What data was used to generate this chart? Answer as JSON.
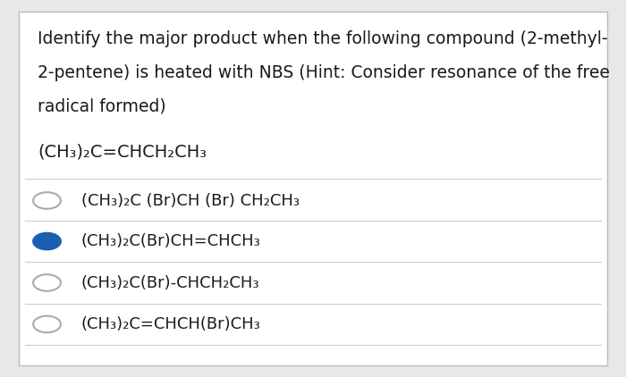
{
  "background_color": "#e8e8e8",
  "panel_color": "#ffffff",
  "question_text_line1": "Identify the major product when the following compound (2-methyl-",
  "question_text_line2": "2-pentene) is heated with NBS (Hint: Consider resonance of the free",
  "question_text_line3": "radical formed)",
  "compound": "(CH₃)₂C=CHCH₂CH₃",
  "options": [
    {
      "label": "(CH₃)₂C (Br)CH (Br) CH₂CH₃",
      "selected": false
    },
    {
      "label": "(CH₃)₂C(Br)CH=CHCH₃",
      "selected": true
    },
    {
      "label": "(CH₃)₂C(Br)-CHCH₂CH₃",
      "selected": false
    },
    {
      "label": "(CH₃)₂C=CHCH(Br)CH₃",
      "selected": false
    }
  ],
  "font_size_question": 13.5,
  "font_size_compound": 14,
  "font_size_options": 13,
  "selected_color": "#1a5fb4",
  "unselected_color": "#aaaaaa",
  "text_color": "#1a1a1a",
  "line_color": "#cccccc"
}
